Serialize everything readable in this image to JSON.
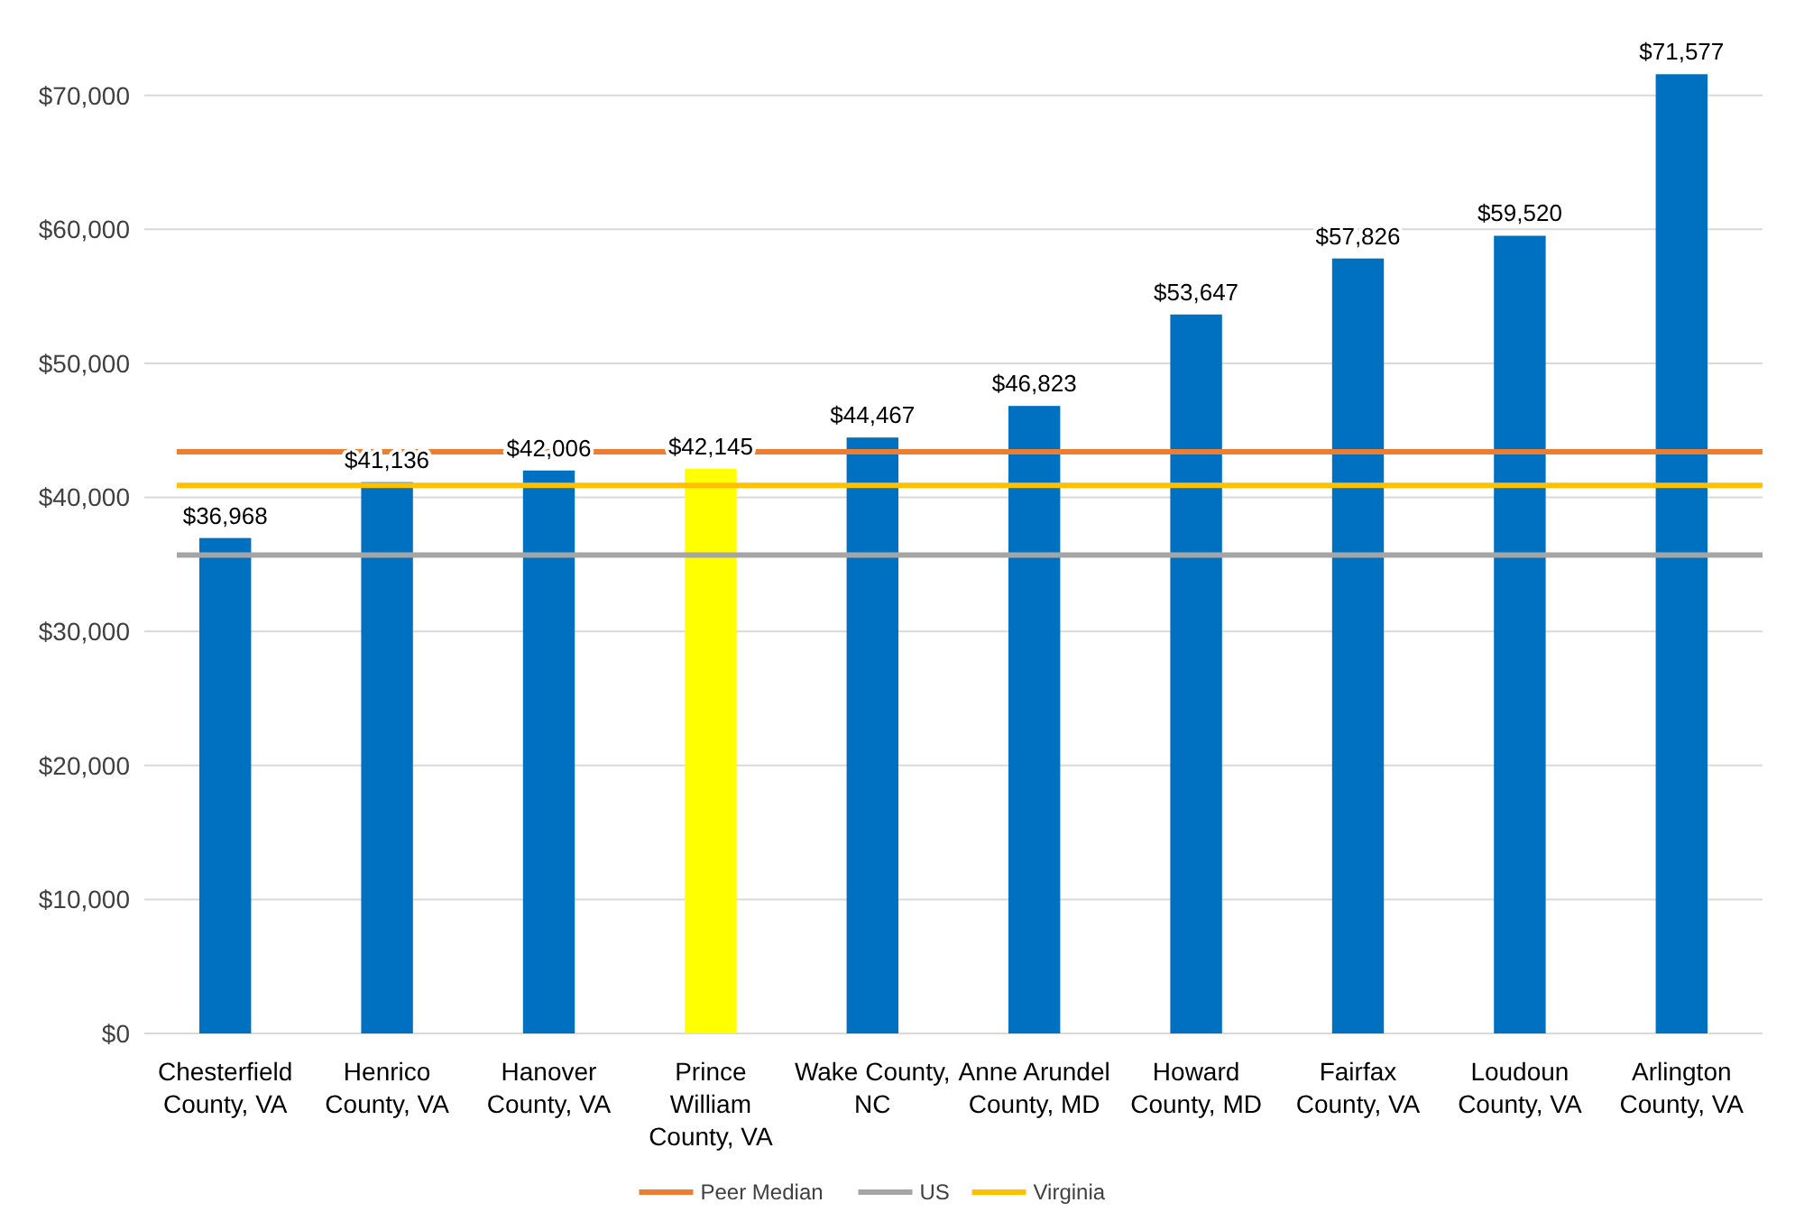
{
  "chart_data": {
    "type": "bar",
    "categories": [
      "Chesterfield County, VA",
      "Henrico County, VA",
      "Hanover County, VA",
      "Prince William County, VA",
      "Wake County, NC",
      "Anne Arundel County, MD",
      "Howard County, MD",
      "Fairfax County, VA",
      "Loudoun County, VA",
      "Arlington County, VA"
    ],
    "values": [
      36968,
      41136,
      42006,
      42145,
      44467,
      46823,
      53647,
      57826,
      59520,
      71577
    ],
    "colors": [
      "#0070c0",
      "#0070c0",
      "#0070c0",
      "#ffff00",
      "#0070c0",
      "#0070c0",
      "#0070c0",
      "#0070c0",
      "#0070c0",
      "#0070c0"
    ],
    "value_labels": [
      "$36,968",
      "$41,136",
      "$42,006",
      "$42,145",
      "$44,467",
      "$46,823",
      "$53,647",
      "$57,826",
      "$59,520",
      "$71,577"
    ],
    "ylim": [
      0,
      72000
    ],
    "yticks": [
      {
        "value": 0,
        "label": "$0"
      },
      {
        "value": 10000,
        "label": "$10,000"
      },
      {
        "value": 20000,
        "label": "$20,000"
      },
      {
        "value": 30000,
        "label": "$30,000"
      },
      {
        "value": 40000,
        "label": "$40,000"
      },
      {
        "value": 50000,
        "label": "$50,000"
      },
      {
        "value": 60000,
        "label": "$60,000"
      },
      {
        "value": 70000,
        "label": "$70,000"
      }
    ],
    "grid": "y",
    "ref_lines": [
      {
        "axis": "y",
        "value": 43400,
        "label": "Peer Median",
        "color": "#ed7d31"
      },
      {
        "axis": "y",
        "value": 35700,
        "label": "US",
        "color": "#a5a5a5"
      },
      {
        "axis": "y",
        "value": 40900,
        "label": "Virginia",
        "color": "#ffc000"
      }
    ],
    "legend": "bottom"
  }
}
